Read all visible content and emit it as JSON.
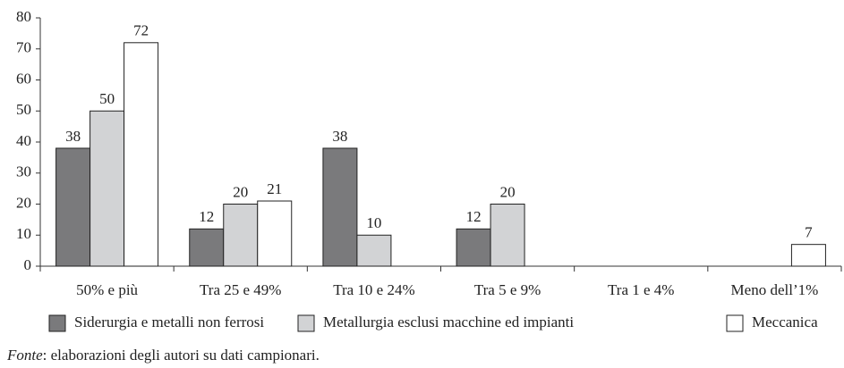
{
  "chart_data": {
    "type": "bar",
    "categories": [
      "50% e più",
      "Tra 25 e 49%",
      "Tra 10 e 24%",
      "Tra 5 e 9%",
      "Tra 1 e 4%",
      "Meno dell’1%"
    ],
    "series": [
      {
        "name": "Siderurgia e metalli non ferrosi",
        "color": "#7a7a7c",
        "values": [
          38,
          12,
          38,
          12,
          null,
          null
        ]
      },
      {
        "name": "Metallurgia esclusi macchine ed impianti",
        "color": "#d2d3d5",
        "values": [
          50,
          20,
          10,
          20,
          null,
          null
        ]
      },
      {
        "name": "Meccanica",
        "color": "#ffffff",
        "values": [
          72,
          21,
          null,
          null,
          null,
          7
        ]
      }
    ],
    "ylim": [
      0,
      80
    ],
    "yticks": [
      0,
      10,
      20,
      30,
      40,
      50,
      60,
      70,
      80
    ],
    "grid": false,
    "legend": "bottom",
    "source": {
      "label": "Fonte",
      "text": ": elaborazioni degli autori su dati campionari."
    }
  }
}
